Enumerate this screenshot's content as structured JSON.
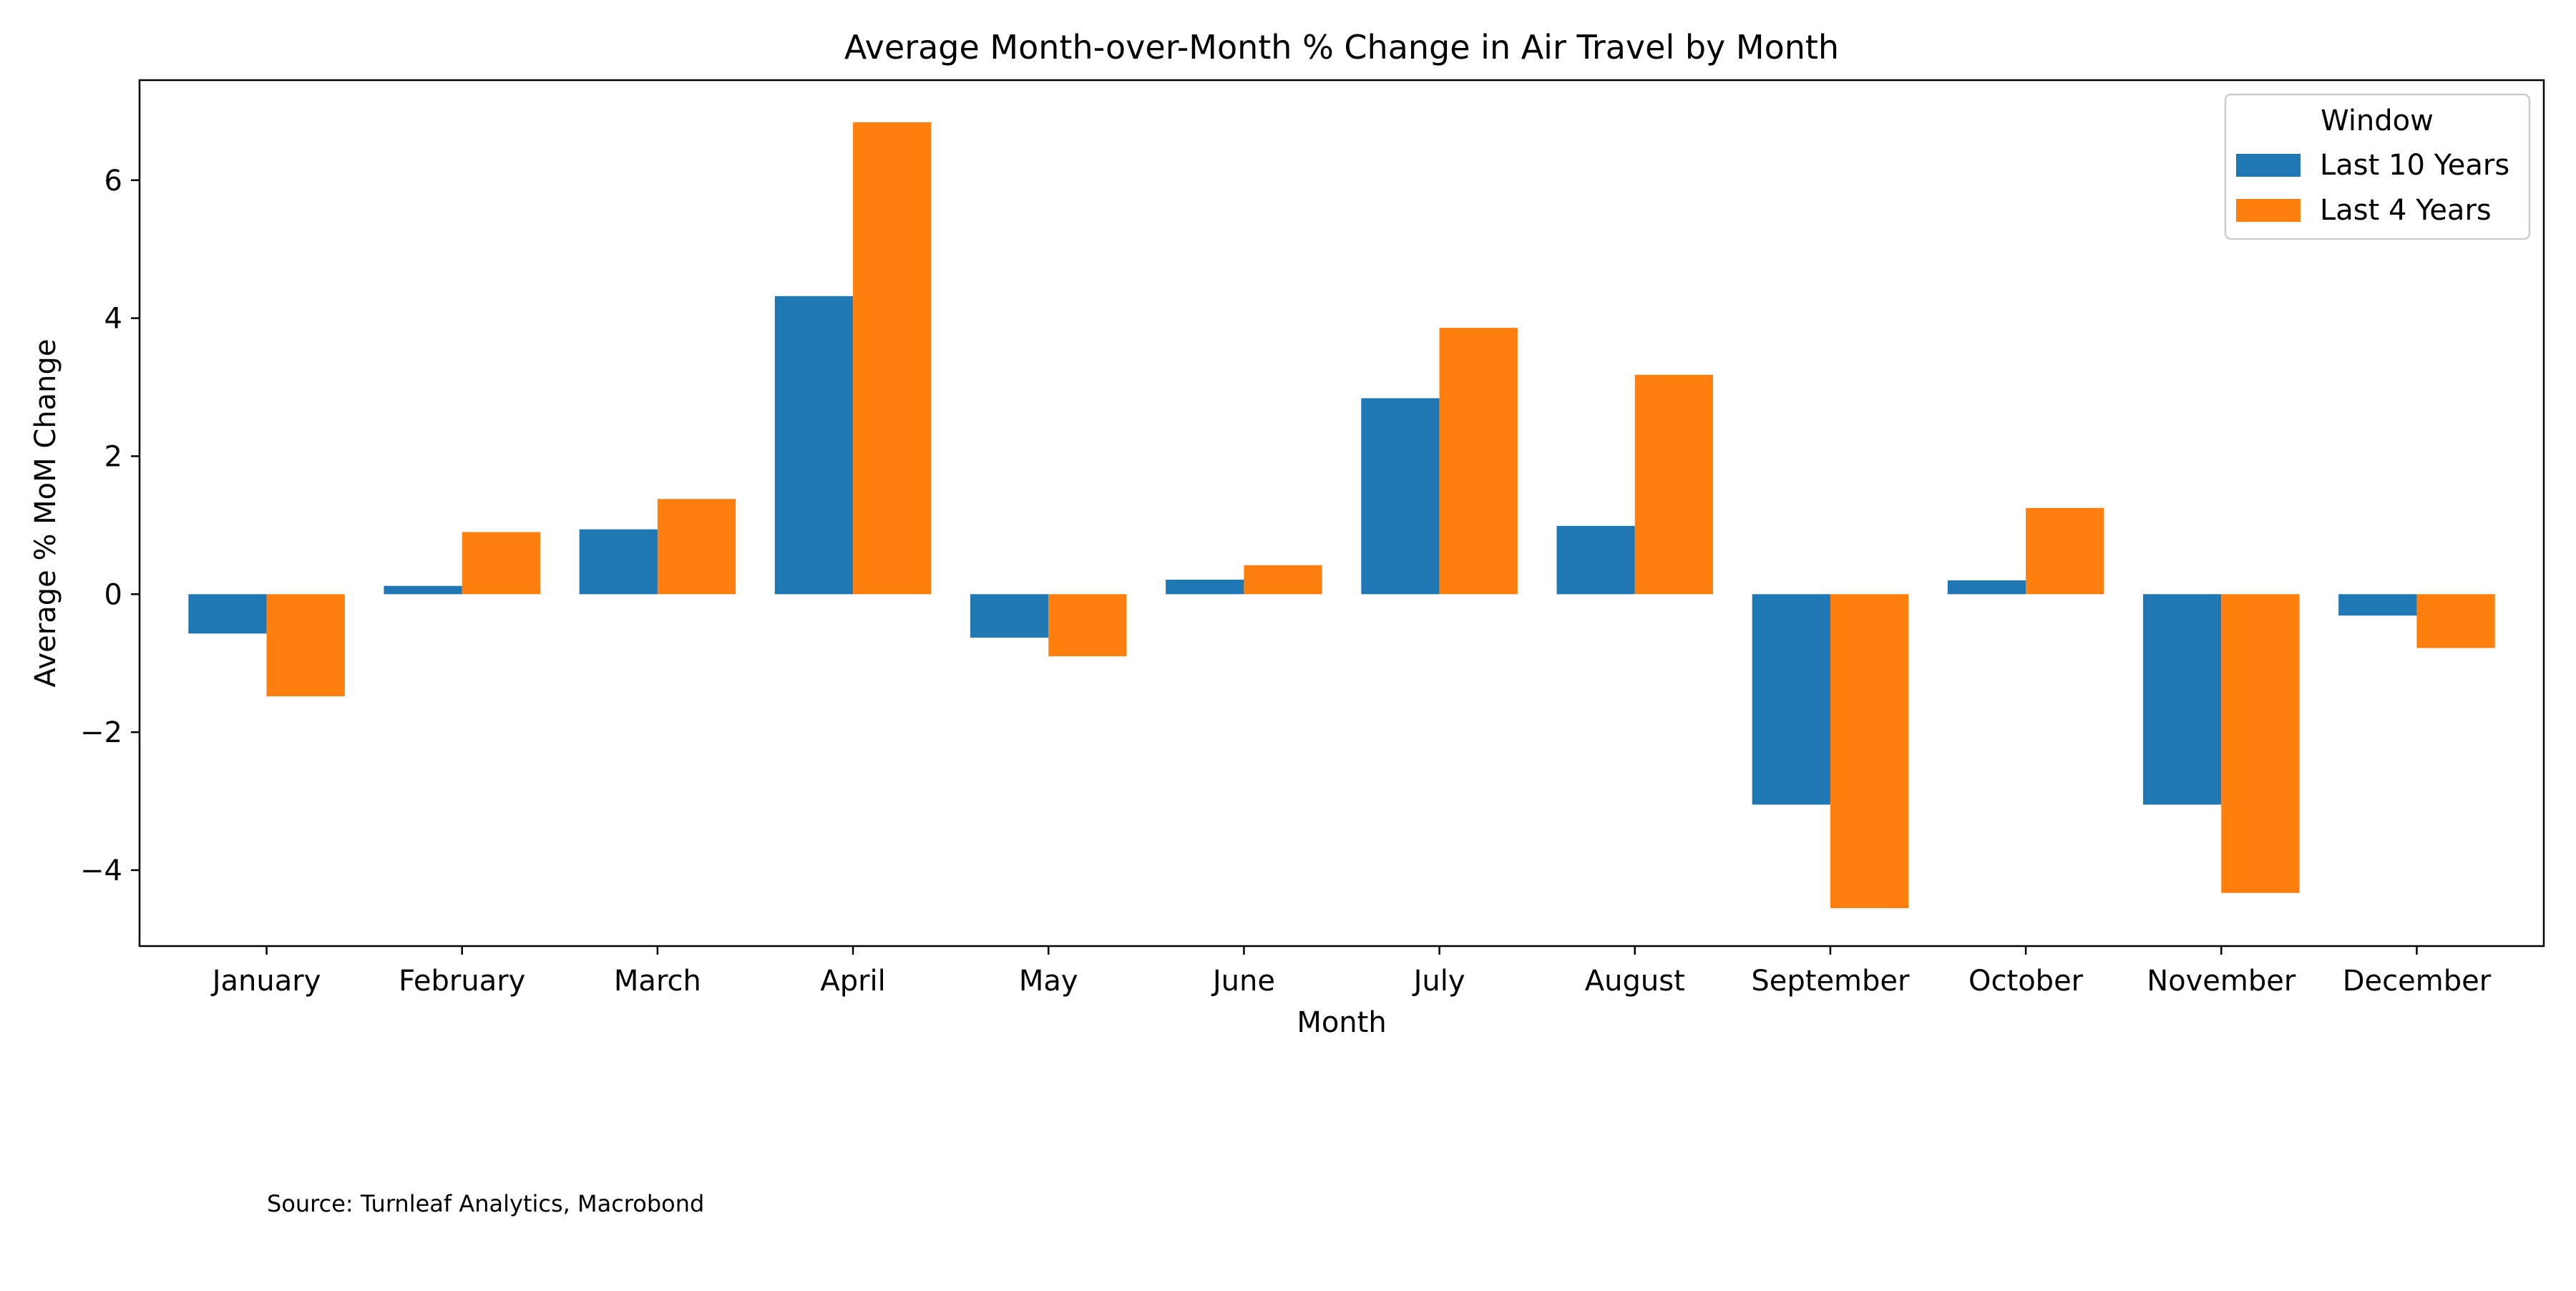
{
  "chart_data": {
    "type": "bar",
    "title": "Average Month-over-Month % Change in Air Travel by Month",
    "xlabel": "Month",
    "ylabel": "Average % MoM Change",
    "categories": [
      "January",
      "February",
      "March",
      "April",
      "May",
      "June",
      "July",
      "August",
      "September",
      "October",
      "November",
      "December"
    ],
    "series": [
      {
        "name": "Last 10 Years",
        "color": "#1f77b4",
        "values": [
          -0.57,
          0.12,
          0.94,
          4.32,
          -0.63,
          0.21,
          2.84,
          0.99,
          -3.05,
          0.2,
          -3.05,
          -0.31
        ]
      },
      {
        "name": "Last 4 Years",
        "color": "#ff7f0e",
        "values": [
          -1.48,
          0.9,
          1.38,
          6.84,
          -0.9,
          0.42,
          3.86,
          3.18,
          -4.55,
          1.25,
          -4.33,
          -0.78
        ]
      }
    ],
    "ylim": [
      -5.1,
      7.45
    ],
    "yticks": [
      -4,
      -2,
      0,
      2,
      4,
      6
    ],
    "ytick_labels": [
      "−4",
      "−2",
      "0",
      "2",
      "4",
      "6"
    ],
    "legend": {
      "title": "Window",
      "placement": "top-right"
    },
    "grid": false
  },
  "footer": {
    "source": "Source: Turnleaf Analytics, Macrobond"
  }
}
